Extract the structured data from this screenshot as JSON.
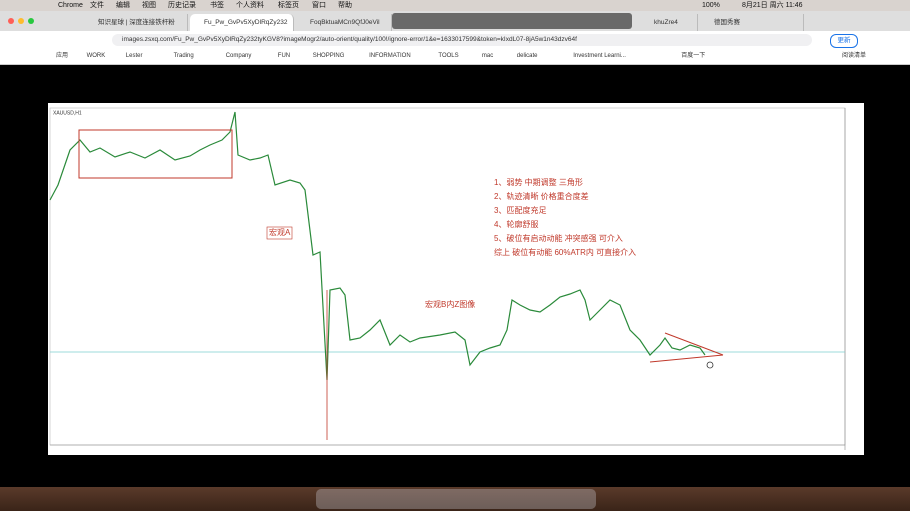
{
  "menubar": {
    "app": "Chrome",
    "items": [
      "文件",
      "编辑",
      "视图",
      "历史记录",
      "书签",
      "个人资料",
      "标签页",
      "窗口",
      "帮助"
    ],
    "battery": "100%",
    "clock": "8月21日 周六 11:46"
  },
  "tabs": [
    "知识星球 | 深度连接铁杆粉",
    "Fu_Pw_GvPv5XyDlRqZy232",
    "FoqBktuaMCn9QfJ0eVil",
    "khuZre4",
    "德国秀赛"
  ],
  "address": {
    "url": "images.zsxq.com/Fu_Pw_GvPv5XyDlRqZy232tyKGV8?imageMogr2/auto-orient/quality/100!/ignore-error/1&e=1633017599&token=kIxdL07-8jA5w1n43dzv64f"
  },
  "update_button": "更新",
  "bookmarks": [
    "应用",
    "WORK",
    "Lester",
    "Trading",
    "Company",
    "FUN",
    "SHOPPING",
    "INFORMATION",
    "TOOLS",
    "mac",
    "delicate",
    "Investment Learni...",
    "百度一下"
  ],
  "reading_list": "阅读清单",
  "chart": {
    "symbol": "XAUUSD,H1",
    "notes": [
      "1、弱势 中期调整 三角形",
      "2、轨迹清晰 价格重合度差",
      "3、匹配度充足",
      "4、轮廓舒服",
      "5、破位有启动动能 冲突感强 可介入",
      "综上 破位有动能 60%ATR内 可直接介入"
    ],
    "macro_a": "宏观A",
    "macro_b": "宏观B内Z图像"
  }
}
